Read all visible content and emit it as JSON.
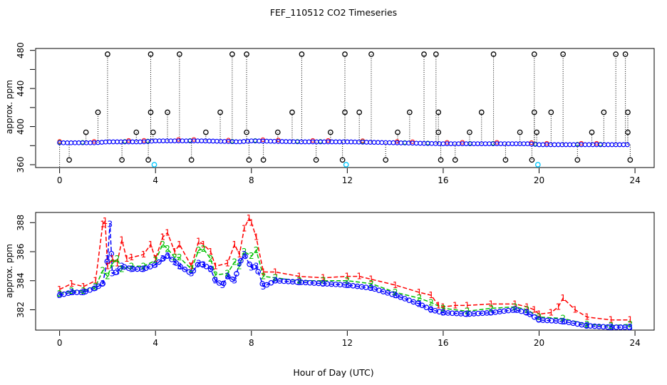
{
  "chart_data": [
    {
      "type": "scatter",
      "title": "FEF_110512  CO2 Timeseries",
      "xlabel": "",
      "ylabel": "approx. ppm",
      "xlim": [
        -1,
        24.8
      ],
      "ylim": [
        357,
        482
      ],
      "xticks": [
        "0",
        "4",
        "8",
        "12",
        "16",
        "20",
        "24"
      ],
      "yticks": [
        "360",
        "400",
        "440",
        "480"
      ],
      "ytick_values": [
        360,
        380,
        400,
        420,
        440,
        460,
        480
      ],
      "series": [
        {
          "name": "raw-black",
          "color": "#000000",
          "x": [
            0.4,
            1.1,
            1.6,
            2.0,
            2.6,
            3.2,
            3.7,
            3.8,
            3.8,
            3.9,
            4.5,
            5.0,
            5.5,
            6.1,
            6.7,
            7.2,
            7.8,
            7.8,
            7.9,
            8.5,
            9.1,
            9.7,
            10.1,
            10.7,
            11.3,
            11.8,
            11.9,
            11.9,
            12.5,
            13.0,
            13.6,
            14.1,
            14.6,
            15.2,
            15.7,
            15.8,
            15.8,
            15.9,
            16.5,
            17.1,
            17.6,
            18.1,
            18.6,
            19.2,
            19.7,
            19.8,
            19.8,
            19.9,
            20.5,
            21.0,
            21.6,
            22.2,
            22.7,
            23.2,
            23.6,
            23.7,
            23.7,
            23.8
          ],
          "y": [
            365,
            394,
            415,
            476,
            365,
            394,
            365,
            415,
            476,
            394,
            415,
            476,
            365,
            394,
            415,
            476,
            476,
            394,
            365,
            365,
            394,
            415,
            476,
            365,
            394,
            365,
            415,
            476,
            415,
            476,
            365,
            394,
            415,
            476,
            476,
            415,
            394,
            365,
            365,
            394,
            415,
            476,
            365,
            394,
            365,
            415,
            476,
            394,
            415,
            476,
            365,
            394,
            415,
            476,
            476,
            415,
            394,
            365
          ]
        },
        {
          "name": "baseline-blue",
          "color": "#0000ff",
          "segments": [
            [
              0.0,
              383
            ],
            [
              1.5,
              383
            ],
            [
              2.0,
              384
            ],
            [
              3.5,
              384
            ],
            [
              4.0,
              385
            ],
            [
              6.0,
              385
            ],
            [
              7.5,
              384
            ],
            [
              8.0,
              385
            ],
            [
              10.0,
              384
            ],
            [
              12.0,
              384
            ],
            [
              14.0,
              383
            ],
            [
              16.0,
              382
            ],
            [
              19.5,
              382
            ],
            [
              20.0,
              381
            ],
            [
              24.0,
              381
            ]
          ]
        },
        {
          "name": "highlight-cyan",
          "color": "#00c8ff",
          "x": [
            3.95,
            11.95,
            19.95
          ],
          "y": [
            360,
            360,
            360
          ]
        }
      ]
    },
    {
      "type": "line",
      "title": "",
      "xlabel": "Hour of Day (UTC)",
      "ylabel": "approx. ppm",
      "xlim": [
        -1,
        24.8
      ],
      "ylim": [
        380.6,
        388.7
      ],
      "xticks": [
        "0",
        "4",
        "8",
        "12",
        "16",
        "20",
        "24"
      ],
      "yticks": [
        "382",
        "384",
        "386",
        "388"
      ],
      "ytick_values": [
        382,
        384,
        386,
        388
      ],
      "series": [
        {
          "name": "1",
          "marker": "1",
          "color": "#ff0000",
          "x": [
            0,
            0.5,
            1,
            1.5,
            1.8,
            1.9,
            2.0,
            2.2,
            2.4,
            2.6,
            2.8,
            3.0,
            3.5,
            3.8,
            4.0,
            4.3,
            4.5,
            4.8,
            5.0,
            5.5,
            5.8,
            6.0,
            6.3,
            6.5,
            7.0,
            7.3,
            7.5,
            7.7,
            7.9,
            8.0,
            8.2,
            8.5,
            9.0,
            10.0,
            11.0,
            12.0,
            12.5,
            13.0,
            14.0,
            15.0,
            15.5,
            15.8,
            16.0,
            16.5,
            17.0,
            18.0,
            19.0,
            19.5,
            19.8,
            20.0,
            20.5,
            20.8,
            21.0,
            21.5,
            22.0,
            23.0,
            23.8
          ],
          "y": [
            383.4,
            383.8,
            383.6,
            384.0,
            387.9,
            388.1,
            385.0,
            385.5,
            385.2,
            386.8,
            385.5,
            385.6,
            385.8,
            386.5,
            385.5,
            387.0,
            387.3,
            386.0,
            386.5,
            385.0,
            386.7,
            386.5,
            386.0,
            385.0,
            385.2,
            386.5,
            385.8,
            387.6,
            388.3,
            388.0,
            387.0,
            384.6,
            384.6,
            384.3,
            384.2,
            384.3,
            384.3,
            384.1,
            383.7,
            383.2,
            383.0,
            382.3,
            382.2,
            382.3,
            382.3,
            382.4,
            382.4,
            382.2,
            382.0,
            381.7,
            381.8,
            382.2,
            382.8,
            382.0,
            381.5,
            381.3,
            381.3
          ]
        },
        {
          "name": "2",
          "marker": "2",
          "color": "#00c000",
          "x": [
            0,
            0.5,
            1,
            1.5,
            1.8,
            2.0,
            2.2,
            2.4,
            2.6,
            3.0,
            3.5,
            4.0,
            4.3,
            4.5,
            4.8,
            5.0,
            5.5,
            5.8,
            6.0,
            6.3,
            6.5,
            7.0,
            7.3,
            7.5,
            7.7,
            8.0,
            8.2,
            8.5,
            9.0,
            10.0,
            11.0,
            12.0,
            13.0,
            14.0,
            15.0,
            15.5,
            16.0,
            17.0,
            18.0,
            19.0,
            19.5,
            20.0,
            21.0,
            22.0,
            23.0,
            23.8
          ],
          "y": [
            383.1,
            383.3,
            383.3,
            383.6,
            384.7,
            384.3,
            385.2,
            385.5,
            384.8,
            385.0,
            385.0,
            385.4,
            386.5,
            386.2,
            385.6,
            385.6,
            384.8,
            386.1,
            386.2,
            385.5,
            384.4,
            384.5,
            385.3,
            385.0,
            386.0,
            385.7,
            386.1,
            384.3,
            384.2,
            384.0,
            384.0,
            384.0,
            383.8,
            383.2,
            382.8,
            382.5,
            382.1,
            381.9,
            382.1,
            382.2,
            382.0,
            381.5,
            381.4,
            381.0,
            380.9,
            381.0
          ]
        },
        {
          "name": "3",
          "marker": "3",
          "color": "#0000ff",
          "x": [
            0,
            0.5,
            1,
            1.5,
            1.8,
            2.0,
            2.1,
            2.2,
            2.4,
            2.6,
            3.0,
            3.5,
            4.0,
            4.3,
            4.5,
            4.8,
            5.0,
            5.5,
            5.8,
            6.0,
            6.3,
            6.5,
            6.8,
            7.0,
            7.3,
            7.5,
            7.7,
            8.0,
            8.2,
            8.5,
            9.0,
            10.0,
            11.0,
            12.0,
            13.0,
            14.0,
            15.0,
            15.5,
            16.0,
            17.0,
            18.0,
            19.0,
            19.5,
            20.0,
            21.0,
            22.0,
            23.0,
            23.8
          ],
          "y": [
            383.0,
            383.2,
            383.2,
            383.5,
            383.8,
            385.5,
            387.9,
            384.5,
            384.6,
            385.0,
            384.8,
            384.8,
            385.1,
            385.5,
            385.7,
            385.3,
            385.0,
            384.5,
            385.2,
            385.1,
            384.8,
            384.0,
            383.7,
            384.3,
            384.0,
            385.2,
            385.8,
            384.9,
            385.0,
            383.6,
            384.0,
            383.9,
            383.8,
            383.7,
            383.5,
            383.0,
            382.4,
            382.0,
            381.8,
            381.7,
            381.8,
            382.0,
            381.8,
            381.3,
            381.2,
            380.9,
            380.8,
            380.8
          ]
        }
      ]
    }
  ],
  "labels": {
    "title": "FEF_110512  CO2 Timeseries",
    "top_ylabel": "approx. ppm",
    "bottom_ylabel": "approx. ppm",
    "xlabel": "Hour of Day (UTC)",
    "series1_marker": "1",
    "series2_marker": "2",
    "series3_marker": "3"
  }
}
